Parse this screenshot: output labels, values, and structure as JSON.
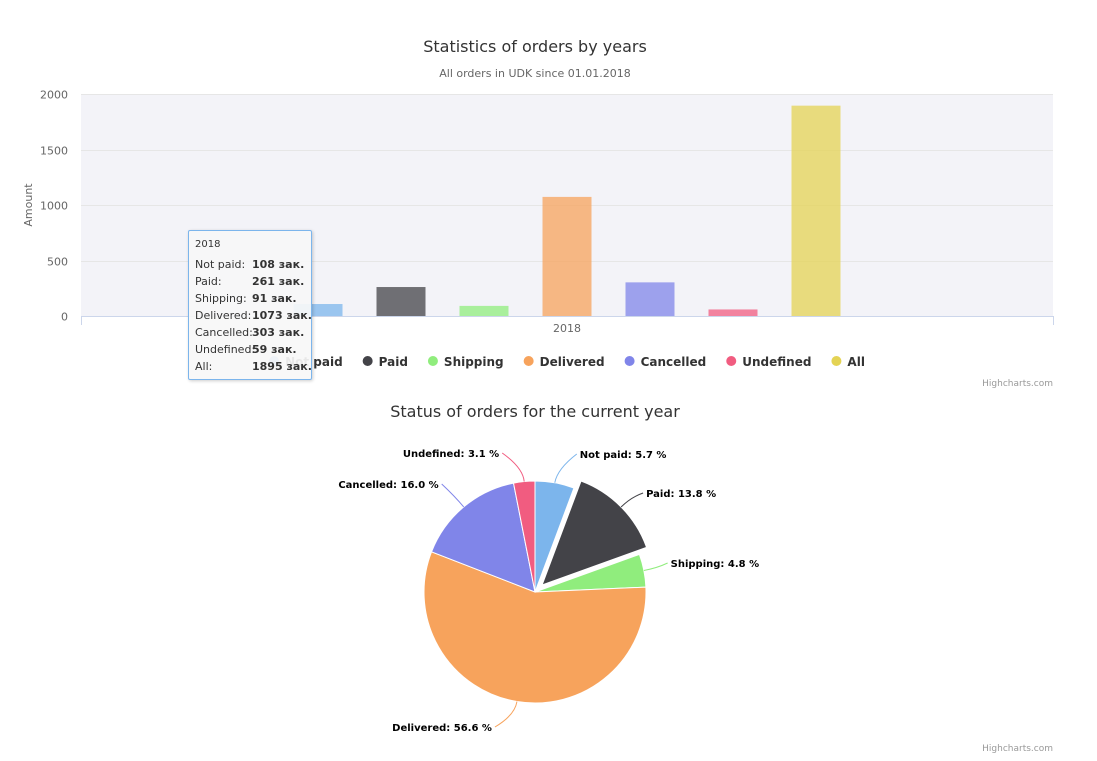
{
  "chart_data": [
    {
      "type": "bar",
      "title": "Statistics of orders by years",
      "subtitle": "All orders in UDK since 01.01.2018",
      "xlabel": "",
      "ylabel": "Amount",
      "categories": [
        "2018"
      ],
      "ylim": [
        0,
        2000
      ],
      "yticks": [
        "0",
        "500",
        "1000",
        "1500",
        "2000"
      ],
      "grid": true,
      "legend_position": "bottom",
      "credits": "Highcharts.com",
      "series": [
        {
          "name": "Not paid",
          "values": [
            108
          ],
          "color": "#7cb5ec"
        },
        {
          "name": "Paid",
          "values": [
            261
          ],
          "color": "#434348"
        },
        {
          "name": "Shipping",
          "values": [
            91
          ],
          "color": "#90ed7d"
        },
        {
          "name": "Delivered",
          "values": [
            1073
          ],
          "color": "#f7a35c"
        },
        {
          "name": "Cancelled",
          "values": [
            303
          ],
          "color": "#8085e9"
        },
        {
          "name": "Undefined",
          "values": [
            59
          ],
          "color": "#f15c80"
        },
        {
          "name": "All",
          "values": [
            1895
          ],
          "color": "#e4d354"
        }
      ],
      "tooltip": {
        "header": "2018",
        "rows": [
          {
            "label": "Not paid:",
            "value": "108 зак."
          },
          {
            "label": "Paid:",
            "value": "261 зак."
          },
          {
            "label": "Shipping:",
            "value": "91 зак."
          },
          {
            "label": "Delivered:",
            "value": "1073 зак."
          },
          {
            "label": "Cancelled:",
            "value": "303 зак."
          },
          {
            "label": "Undefined:",
            "value": "59 зак."
          },
          {
            "label": "All:",
            "value": "1895 зак."
          }
        ]
      }
    },
    {
      "type": "pie",
      "title": "Status of orders for the current year",
      "credits": "Highcharts.com",
      "slices": [
        {
          "name": "Not paid",
          "value": 5.7,
          "label": "Not paid: 5.7 %",
          "color": "#7cb5ec"
        },
        {
          "name": "Paid",
          "value": 13.8,
          "label": "Paid: 13.8 %",
          "color": "#434348",
          "sliced": true
        },
        {
          "name": "Shipping",
          "value": 4.8,
          "label": "Shipping: 4.8 %",
          "color": "#90ed7d"
        },
        {
          "name": "Delivered",
          "value": 56.6,
          "label": "Delivered: 56.6 %",
          "color": "#f7a35c"
        },
        {
          "name": "Cancelled",
          "value": 16.0,
          "label": "Cancelled: 16.0 %",
          "color": "#8085e9"
        },
        {
          "name": "Undefined",
          "value": 3.1,
          "label": "Undefined: 3.1 %",
          "color": "#f15c80"
        }
      ]
    }
  ]
}
